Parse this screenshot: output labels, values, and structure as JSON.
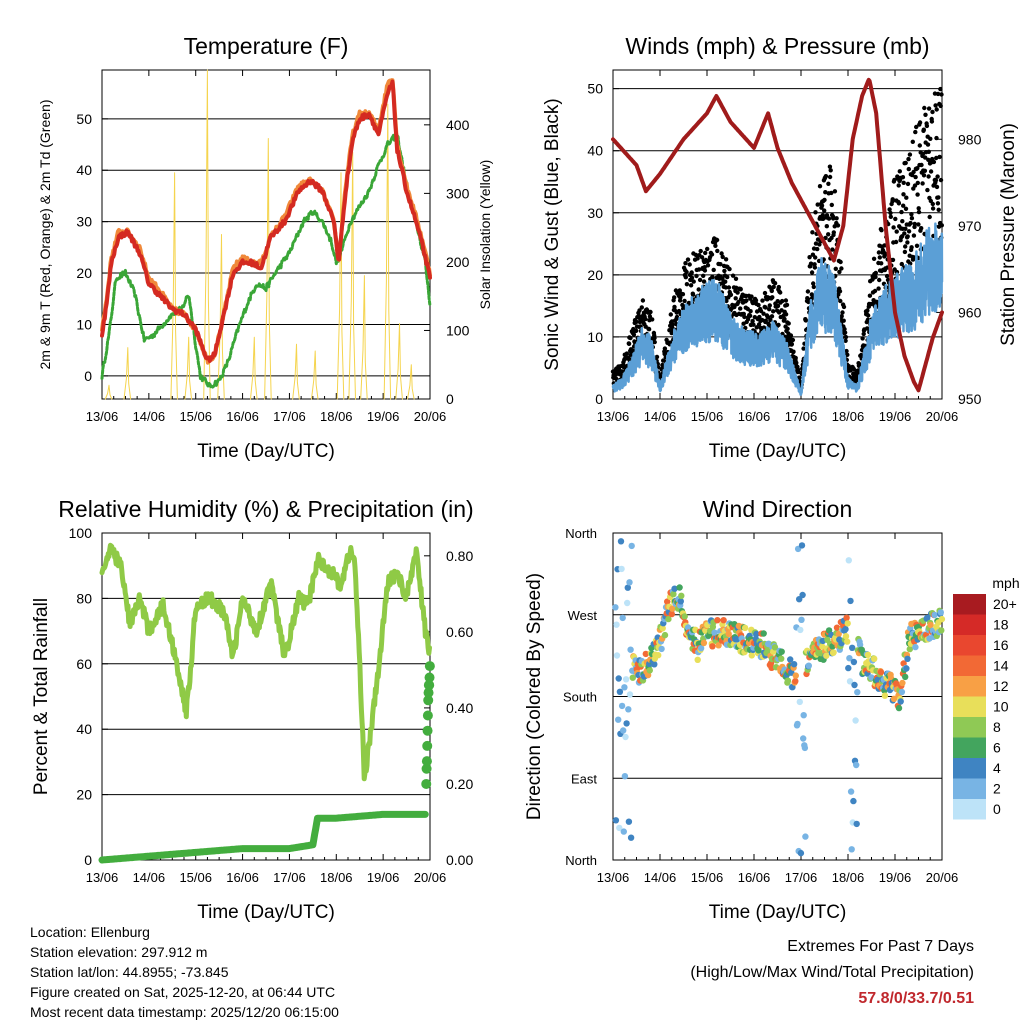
{
  "colors": {
    "temp2m": "#d42a21",
    "temp9m": "#f0893a",
    "dewpoint": "#3aa637",
    "solar": "#f5d44e",
    "wind": "#5b9fd6",
    "gust": "#000000",
    "pressure": "#a01b1b",
    "rh": "#8fca46",
    "precip": "#43ad3e",
    "extremes": "#c0282d"
  },
  "x_ticks": [
    "13/06",
    "14/06",
    "15/06",
    "16/06",
    "17/06",
    "18/06",
    "19/06",
    "20/06"
  ],
  "chart_data": [
    {
      "type": "line",
      "title": "Temperature (F)",
      "xlabel": "Time (Day/UTC)",
      "ylabel": "2m & 9m T (Red, Orange) & 2m Td (Green)",
      "y2label": "Solar Insolation (Yellow)",
      "xlim": [
        0,
        7
      ],
      "ylim": [
        -4.5,
        59.5
      ],
      "y_ticks": [
        0,
        10,
        20,
        30,
        40,
        50
      ],
      "y2lim": [
        0,
        480
      ],
      "y2_ticks": [
        0,
        100,
        200,
        300,
        400
      ],
      "series": [
        {
          "name": "2m T",
          "x": [
            0,
            0.1,
            0.2,
            0.35,
            0.55,
            0.8,
            1.0,
            1.2,
            1.5,
            1.75,
            2.0,
            2.25,
            2.4,
            2.6,
            2.8,
            3.0,
            3.2,
            3.4,
            3.6,
            3.9,
            4.2,
            4.45,
            4.7,
            4.95,
            5.05,
            5.2,
            5.35,
            5.5,
            5.7,
            5.9,
            6.1,
            6.2,
            6.3,
            6.5,
            6.7,
            6.85,
            7.0
          ],
          "y": [
            8,
            14,
            22,
            27,
            28,
            24,
            18,
            16,
            13,
            12,
            9,
            3,
            4,
            12,
            20,
            22,
            22,
            21,
            27,
            30,
            36,
            38,
            36,
            30,
            22,
            36,
            46,
            50,
            51,
            47,
            55,
            57,
            44,
            36,
            30,
            25,
            19
          ]
        },
        {
          "name": "9m T",
          "x": [
            0,
            0.1,
            0.2,
            0.35,
            0.55,
            0.8,
            1.0,
            1.2,
            1.5,
            1.75,
            2.0,
            2.25,
            2.4,
            2.6,
            2.8,
            3.0,
            3.2,
            3.4,
            3.6,
            3.9,
            4.2,
            4.45,
            4.7,
            4.95,
            5.05,
            5.2,
            5.35,
            5.5,
            5.7,
            5.9,
            6.1,
            6.2,
            6.3,
            6.5,
            6.7,
            6.85,
            7.0
          ],
          "y": [
            9,
            15,
            23,
            28,
            28,
            25,
            19,
            17,
            13,
            12,
            9,
            3,
            4,
            12,
            21,
            23,
            22,
            22,
            27,
            31,
            37,
            38,
            36,
            30,
            22,
            37,
            47,
            51,
            51,
            48,
            57,
            58,
            45,
            37,
            31,
            26,
            20
          ]
        },
        {
          "name": "2m Td",
          "x": [
            0,
            0.15,
            0.3,
            0.5,
            0.7,
            0.9,
            1.1,
            1.3,
            1.5,
            1.7,
            1.85,
            2.0,
            2.1,
            2.3,
            2.5,
            2.7,
            2.9,
            3.1,
            3.3,
            3.5,
            3.7,
            4.0,
            4.3,
            4.5,
            4.7,
            4.9,
            5.0,
            5.1,
            5.3,
            5.5,
            5.7,
            5.9,
            6.1,
            6.3,
            6.5,
            6.7,
            6.9,
            7.0
          ],
          "y": [
            0,
            8,
            19,
            20,
            16,
            7,
            8,
            10,
            12,
            13,
            16,
            6,
            0,
            -2,
            -1,
            3,
            9,
            14,
            18,
            17,
            20,
            24,
            30,
            32,
            30,
            26,
            22,
            24,
            30,
            33,
            36,
            41,
            45,
            47,
            37,
            30,
            22,
            14
          ]
        },
        {
          "name": "Solar Insolation",
          "axis": "y2",
          "peaks_x": [
            0.15,
            0.55,
            1.55,
            1.85,
            2.25,
            2.55,
            3.25,
            3.55,
            4.15,
            4.55,
            5.1,
            5.35,
            5.6,
            6.1,
            6.35,
            6.6
          ],
          "peaks_y": [
            20,
            75,
            330,
            90,
            480,
            240,
            90,
            380,
            80,
            70,
            330,
            360,
            180,
            430,
            110,
            50
          ]
        }
      ]
    },
    {
      "type": "line",
      "title": "Winds (mph) & Pressure (mb)",
      "xlabel": "Time (Day/UTC)",
      "ylabel": "Sonic Wind & Gust (Blue, Black)",
      "y2label": "Station Pressure (Maroon)",
      "xlim": [
        0,
        7
      ],
      "ylim": [
        0,
        53
      ],
      "y_ticks": [
        0,
        10,
        20,
        30,
        40,
        50
      ],
      "y2lim": [
        950,
        988
      ],
      "y2_ticks": [
        950,
        960,
        970,
        980
      ],
      "series": [
        {
          "name": "Sonic Wind",
          "x": [
            0,
            0.2,
            0.4,
            0.6,
            0.8,
            1.0,
            1.3,
            1.6,
            1.9,
            2.2,
            2.5,
            2.8,
            3.1,
            3.4,
            3.7,
            4.0,
            4.2,
            4.4,
            4.7,
            5.0,
            5.2,
            5.5,
            5.8,
            6.1,
            6.4,
            6.7,
            7.0
          ],
          "y": [
            2,
            3,
            6,
            10,
            9,
            2,
            10,
            14,
            16,
            17,
            12,
            10,
            9,
            11,
            8,
            1,
            14,
            20,
            18,
            3,
            2,
            12,
            16,
            18,
            20,
            24,
            26
          ]
        },
        {
          "name": "Gust",
          "x": [
            0,
            0.2,
            0.4,
            0.6,
            0.8,
            1.0,
            1.3,
            1.6,
            1.9,
            2.2,
            2.5,
            2.8,
            3.1,
            3.4,
            3.7,
            4.0,
            4.2,
            4.4,
            4.7,
            5.0,
            5.2,
            5.5,
            5.8,
            6.1,
            6.4,
            6.7,
            7.0
          ],
          "y": [
            4,
            5,
            10,
            14,
            13,
            3,
            15,
            20,
            22,
            23,
            18,
            15,
            14,
            17,
            14,
            2,
            22,
            30,
            34,
            5,
            4,
            18,
            27,
            33,
            38,
            42,
            45
          ]
        },
        {
          "name": "Station Pressure",
          "axis": "y2",
          "x": [
            0,
            0.5,
            0.7,
            1.0,
            1.5,
            2.0,
            2.2,
            2.5,
            3.0,
            3.3,
            3.5,
            3.8,
            4.2,
            4.4,
            4.7,
            4.9,
            5.1,
            5.3,
            5.45,
            5.6,
            5.8,
            6.0,
            6.2,
            6.4,
            6.5,
            6.6,
            6.8,
            7.0
          ],
          "y": [
            980,
            977,
            974,
            976,
            980,
            983,
            985,
            982,
            979,
            983,
            979,
            975,
            971,
            969,
            966,
            970,
            980,
            985,
            987,
            983,
            970,
            960,
            955,
            952,
            951,
            953,
            957,
            960
          ]
        }
      ]
    },
    {
      "type": "line",
      "title": "Relative Humidity (%) & Precipitation (in)",
      "xlabel": "Time (Day/UTC)",
      "ylabel": "Percent & Total Rainfall",
      "xlim": [
        0,
        7
      ],
      "ylim": [
        0,
        100
      ],
      "y_ticks": [
        0,
        20,
        40,
        60,
        80,
        100
      ],
      "y2lim": [
        0,
        0.86
      ],
      "y2_ticks": [
        0.0,
        0.2,
        0.4,
        0.6,
        0.8
      ],
      "series": [
        {
          "name": "Relative Humidity",
          "x": [
            0,
            0.2,
            0.4,
            0.6,
            0.8,
            1.0,
            1.3,
            1.6,
            1.8,
            1.9,
            2.0,
            2.3,
            2.6,
            2.8,
            3.0,
            3.3,
            3.6,
            3.9,
            4.2,
            4.4,
            4.6,
            4.9,
            5.1,
            5.3,
            5.4,
            5.5,
            5.6,
            5.7,
            5.9,
            6.1,
            6.3,
            6.5,
            6.7,
            6.9,
            7.0
          ],
          "y": [
            88,
            95,
            90,
            72,
            80,
            70,
            78,
            60,
            45,
            60,
            78,
            80,
            76,
            62,
            80,
            70,
            85,
            62,
            80,
            78,
            92,
            88,
            84,
            95,
            90,
            60,
            25,
            35,
            58,
            85,
            88,
            80,
            95,
            70,
            63
          ]
        },
        {
          "name": "Total Rainfall",
          "axis": "y2",
          "x": [
            0,
            1,
            2,
            3,
            4,
            4.5,
            4.6,
            4.8,
            5.0,
            6.0,
            6.9,
            6.95,
            7.0
          ],
          "y": [
            0,
            0.01,
            0.02,
            0.03,
            0.03,
            0.04,
            0.11,
            0.11,
            0.11,
            0.12,
            0.12,
            0.46,
            0.51
          ]
        }
      ]
    },
    {
      "type": "scatter",
      "title": "Wind Direction",
      "xlabel": "Time (Day/UTC)",
      "ylabel": "Direction (Colored By Speed)",
      "xlim": [
        0,
        7
      ],
      "ylim": [
        0,
        360
      ],
      "y_ticks": [
        "North",
        "East",
        "South",
        "West",
        "North"
      ],
      "legend_title": "mph",
      "legend_labels": [
        "20+",
        "18",
        "16",
        "14",
        "12",
        "10",
        "8",
        "6",
        "4",
        "2",
        "0"
      ],
      "legend_colors": [
        "#a81b20",
        "#d52a27",
        "#e9472f",
        "#f26935",
        "#f8a045",
        "#e8df5a",
        "#8fc955",
        "#43a55e",
        "#3f84c2",
        "#78b4e4",
        "#bde3f8"
      ],
      "series": [
        {
          "name": "Direction",
          "x": [
            0.2,
            0.4,
            0.6,
            0.8,
            1.0,
            1.2,
            1.4,
            1.6,
            1.8,
            2.0,
            2.3,
            2.6,
            2.9,
            3.2,
            3.5,
            3.7,
            3.9,
            4.2,
            4.5,
            4.8,
            5.0,
            5.3,
            5.6,
            5.9,
            6.1,
            6.3,
            6.5,
            6.7,
            6.9
          ],
          "y": [
            230,
            215,
            205,
            220,
            240,
            280,
            290,
            255,
            235,
            250,
            250,
            245,
            240,
            235,
            220,
            210,
            200,
            225,
            235,
            245,
            255,
            220,
            205,
            190,
            175,
            245,
            250,
            255,
            260
          ]
        }
      ]
    }
  ],
  "info": {
    "location": "Location: Ellenburg",
    "elevation": "Station elevation: 297.912 m",
    "latlon": "Station lat/lon: 44.8955; -73.845",
    "created": "Figure created on Sat, 2025-12-20, at 06:44 UTC",
    "timestamp": "Most recent data timestamp: 2025/12/20 06:15:00"
  },
  "extremes": {
    "title": "Extremes For Past 7 Days",
    "subtitle": "(High/Low/Max Wind/Total Precipitation)",
    "values": "57.8/0/33.7/0.51"
  }
}
